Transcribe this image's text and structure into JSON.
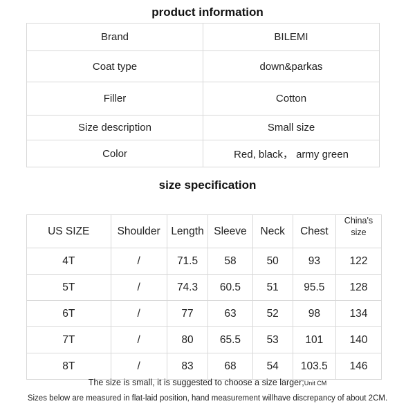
{
  "product_info": {
    "title": "product information",
    "rows": [
      {
        "label": "Brand",
        "value": "BILEMI"
      },
      {
        "label": "Coat type",
        "value": "down&parkas"
      },
      {
        "label": "Filler",
        "value": "Cotton"
      },
      {
        "label": "Size description",
        "value": "Small size"
      },
      {
        "label": "Color",
        "value": "Red, black， army green"
      }
    ]
  },
  "size_spec": {
    "title": "size specification",
    "headers": [
      "US SIZE",
      "Shoulder",
      "Length",
      "Sleeve",
      "Neck",
      "Chest",
      "China's size"
    ],
    "rows": [
      [
        "4T",
        "/",
        "71.5",
        "58",
        "50",
        "93",
        "122"
      ],
      [
        "5T",
        "/",
        "74.3",
        "60.5",
        "51",
        "95.5",
        "128"
      ],
      [
        "6T",
        "/",
        "77",
        "63",
        "52",
        "98",
        "134"
      ],
      [
        "7T",
        "/",
        "80",
        "65.5",
        "53",
        "101",
        "140"
      ],
      [
        "8T",
        "/",
        "83",
        "68",
        "54",
        "103.5",
        "146"
      ]
    ]
  },
  "notes": {
    "line1": "The size is small, it is suggested to choose a size larger;",
    "line1_unit": "Unit CM",
    "line2": "Sizes below are measured in flat-laid position, hand measurement willhave discrepancy of about 2CM."
  }
}
